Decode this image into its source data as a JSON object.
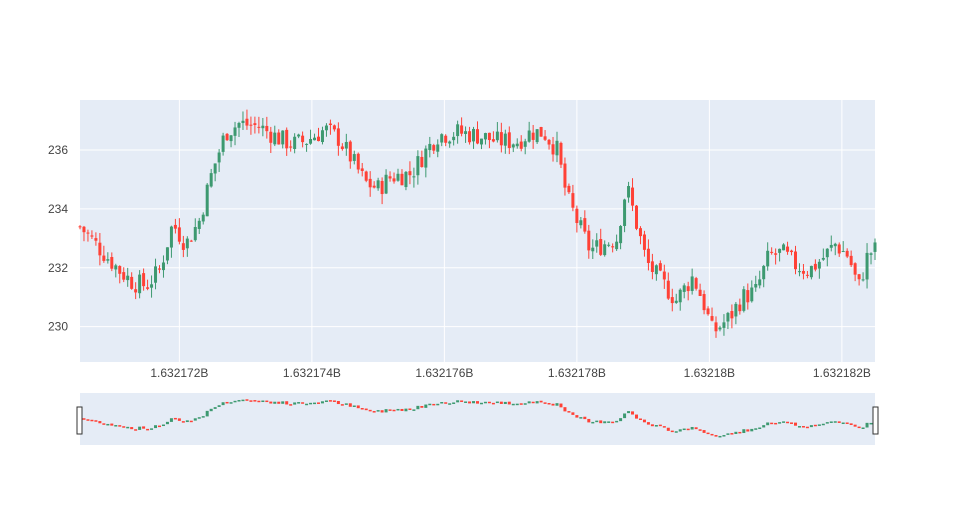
{
  "chart_data": {
    "type": "candlestick",
    "title": "",
    "xlabel": "",
    "ylabel": "",
    "x_range": [
      1632170500,
      1632182500
    ],
    "y_range": [
      228.8,
      237.7
    ],
    "x_ticks": [
      {
        "value": 1632172000,
        "label": "1.632172B"
      },
      {
        "value": 1632174000,
        "label": "1.632174B"
      },
      {
        "value": 1632176000,
        "label": "1.632176B"
      },
      {
        "value": 1632178000,
        "label": "1.632178B"
      },
      {
        "value": 1632180000,
        "label": "1.63218B"
      },
      {
        "value": 1632182000,
        "label": "1.632182B"
      }
    ],
    "y_ticks": [
      {
        "value": 230,
        "label": "230"
      },
      {
        "value": 232,
        "label": "232"
      },
      {
        "value": 234,
        "label": "234"
      },
      {
        "value": 236,
        "label": "236"
      }
    ],
    "grid": true,
    "range_slider": true,
    "colors": {
      "increasing": "#3D9970",
      "decreasing": "#FF4136",
      "plot_bg": "#E5ECF6",
      "grid": "#FFFFFF"
    },
    "close_path": [
      [
        1632170500,
        233.4
      ],
      [
        1632170700,
        232.9
      ],
      [
        1632170900,
        232.4
      ],
      [
        1632171100,
        231.9
      ],
      [
        1632171300,
        231.5
      ],
      [
        1632171500,
        231.4
      ],
      [
        1632171700,
        231.9
      ],
      [
        1632171900,
        233.5
      ],
      [
        1632172100,
        232.8
      ],
      [
        1632172300,
        233.6
      ],
      [
        1632172500,
        235.3
      ],
      [
        1632172700,
        236.6
      ],
      [
        1632172900,
        236.9
      ],
      [
        1632173200,
        236.8
      ],
      [
        1632173500,
        236.4
      ],
      [
        1632173700,
        236.2
      ],
      [
        1632173900,
        236.3
      ],
      [
        1632174200,
        236.7
      ],
      [
        1632174400,
        236.4
      ],
      [
        1632174600,
        235.7
      ],
      [
        1632174800,
        234.9
      ],
      [
        1632175000,
        234.7
      ],
      [
        1632175200,
        235.1
      ],
      [
        1632175500,
        235.2
      ],
      [
        1632175700,
        235.9
      ],
      [
        1632175900,
        236.5
      ],
      [
        1632176200,
        236.6
      ],
      [
        1632176500,
        236.5
      ],
      [
        1632176800,
        236.3
      ],
      [
        1632177100,
        236.3
      ],
      [
        1632177300,
        236.6
      ],
      [
        1632177500,
        236.6
      ],
      [
        1632177700,
        236.0
      ],
      [
        1632177850,
        234.4
      ],
      [
        1632178000,
        233.6
      ],
      [
        1632178200,
        232.6
      ],
      [
        1632178400,
        232.8
      ],
      [
        1632178600,
        233.0
      ],
      [
        1632178750,
        234.8
      ],
      [
        1632178900,
        233.5
      ],
      [
        1632179050,
        232.2
      ],
      [
        1632179250,
        231.6
      ],
      [
        1632179500,
        230.9
      ],
      [
        1632179750,
        231.7
      ],
      [
        1632179900,
        230.9
      ],
      [
        1632180050,
        229.8
      ],
      [
        1632180300,
        230.3
      ],
      [
        1632180500,
        231.0
      ],
      [
        1632180700,
        231.2
      ],
      [
        1632180900,
        232.4
      ],
      [
        1632181100,
        232.5
      ],
      [
        1632181300,
        232.1
      ],
      [
        1632181500,
        231.9
      ],
      [
        1632181700,
        232.3
      ],
      [
        1632181900,
        232.8
      ],
      [
        1632182100,
        232.4
      ],
      [
        1632182250,
        231.3
      ],
      [
        1632182400,
        232.5
      ],
      [
        1632182500,
        232.6
      ]
    ]
  }
}
